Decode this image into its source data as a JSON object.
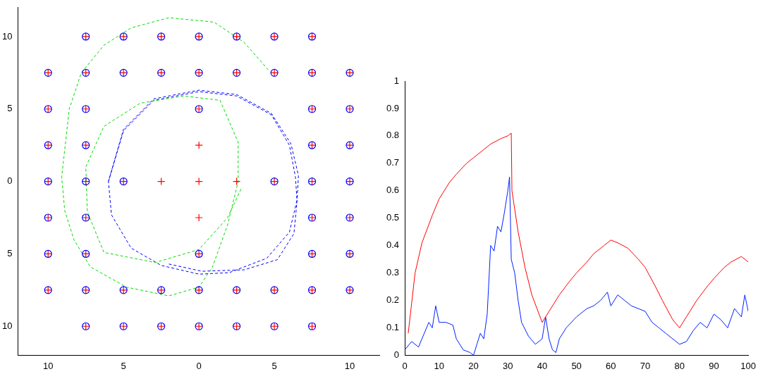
{
  "chart_data": [
    {
      "type": "scatter",
      "xlim": [
        -12,
        12
      ],
      "ylim": [
        -12,
        12
      ],
      "xticks": [
        {
          "value": -10,
          "label": "10"
        },
        {
          "value": -5,
          "label": "5"
        },
        0,
        5,
        10
      ],
      "yticks": [
        {
          "value": -10,
          "label": "10"
        },
        {
          "value": -5,
          "label": "5"
        },
        0,
        5,
        10
      ],
      "grid": false,
      "legend": false,
      "series": [
        {
          "color": "#0000ff",
          "marker": "circle",
          "x": [
            -7.5,
            -5,
            -2.5,
            0,
            2.5,
            5,
            7.5,
            -10,
            -7.5,
            -5,
            -2.5,
            0,
            2.5,
            5,
            7.5,
            10,
            -10,
            -7.5,
            0,
            7.5,
            10,
            -10,
            -7.5,
            7.5,
            10,
            -10,
            -7.5,
            -5,
            5,
            7.5,
            10,
            -10,
            -7.5,
            7.5,
            10,
            -10,
            -7.5,
            0,
            7.5,
            10,
            -10,
            -7.5,
            -5,
            -2.5,
            0,
            2.5,
            5,
            7.5,
            10,
            -7.5,
            -5,
            -2.5,
            0,
            2.5,
            5,
            7.5
          ],
          "values": [
            10,
            10,
            10,
            10,
            10,
            10,
            10,
            7.5,
            7.5,
            7.5,
            7.5,
            7.5,
            7.5,
            7.5,
            7.5,
            7.5,
            5,
            5,
            5,
            5,
            5,
            2.5,
            2.5,
            2.5,
            2.5,
            0,
            0,
            0,
            0,
            0,
            0,
            -2.5,
            -2.5,
            -2.5,
            -2.5,
            -5,
            -5,
            -5,
            -5,
            -5,
            -7.5,
            -7.5,
            -7.5,
            -7.5,
            -7.5,
            -7.5,
            -7.5,
            -7.5,
            -7.5,
            -10,
            -10,
            -10,
            -10,
            -10,
            -10,
            -10
          ]
        },
        {
          "color": "#ff0000",
          "marker": "cross",
          "x": [
            -7.5,
            -5,
            -2.5,
            0,
            2.5,
            5,
            7.5,
            -10,
            -7.5,
            -5,
            -2.5,
            0,
            2.5,
            5,
            7.5,
            10,
            -10,
            -7.5,
            0,
            7.5,
            10,
            -10,
            -7.5,
            0,
            7.5,
            10,
            -10,
            -7.5,
            -5,
            -2.5,
            0,
            2.5,
            5,
            7.5,
            10,
            -10,
            -7.5,
            0,
            7.5,
            10,
            -10,
            -7.5,
            0,
            7.5,
            10,
            -10,
            -7.5,
            -5,
            -2.5,
            0,
            2.5,
            5,
            7.5,
            10,
            -7.5,
            -5,
            -2.5,
            0,
            2.5,
            5,
            7.5
          ],
          "values": [
            10,
            10,
            10,
            10,
            10,
            10,
            10,
            7.5,
            7.5,
            7.5,
            7.5,
            7.5,
            7.5,
            7.5,
            7.5,
            7.5,
            5,
            5,
            5,
            5,
            5,
            2.5,
            2.5,
            2.5,
            2.5,
            2.5,
            0,
            0,
            0,
            0,
            0,
            0,
            0,
            0,
            0,
            -2.5,
            -2.5,
            -2.5,
            -2.5,
            -2.5,
            -5,
            -5,
            -5,
            -5,
            -5,
            -7.5,
            -7.5,
            -7.5,
            -7.5,
            -7.5,
            -7.5,
            -7.5,
            -7.5,
            -7.5,
            -10,
            -10,
            -10,
            -10,
            -10,
            -10,
            -10
          ]
        },
        {
          "type": "line",
          "color": "#00dd00",
          "line_style": "dashed",
          "marker": "none",
          "x": [
            4.6,
            3,
            1,
            -2,
            -4.5,
            -6.3,
            -7.8,
            -8.6,
            -9.1,
            -8.9,
            -8.3,
            -7.2,
            -4.8,
            -2,
            0,
            0.9,
            1.9,
            2.6,
            2.6,
            1.4,
            -1,
            -3.9,
            -6.3,
            -7.5,
            -7.4,
            -6.3,
            -2.9,
            0,
            1.9,
            2.8
          ],
          "values": [
            7.7,
            9.6,
            11,
            11.3,
            10.6,
            9.4,
            7.5,
            5,
            0.3,
            -2,
            -4,
            -5.9,
            -7.3,
            -7.9,
            -7.3,
            -5.9,
            -3,
            0,
            2.7,
            5.6,
            5.9,
            5.4,
            3.8,
            1,
            -2.1,
            -4.9,
            -5.6,
            -4.7,
            -2.5,
            -0.5
          ]
        },
        {
          "type": "line",
          "color": "#0000ff",
          "line_style": "dashed",
          "marker": "none",
          "x": [
            -6,
            -5,
            -3,
            0,
            2.5,
            4.8,
            6,
            6.4,
            6.5,
            6,
            4.5,
            2,
            0,
            -2.5,
            -4.5,
            -5.8,
            -6,
            -5,
            -3,
            0,
            2.5,
            4.8,
            6.1,
            6.6,
            6.5,
            6.3,
            5.2,
            3,
            0.2,
            -2
          ],
          "values": [
            0,
            3.5,
            5.6,
            6.2,
            5.9,
            4.6,
            2.5,
            0.3,
            -1.3,
            -3.5,
            -5.3,
            -6.3,
            -6.4,
            -5.8,
            -4.6,
            -2.3,
            0,
            3.6,
            5.7,
            6.3,
            6,
            4.7,
            2.6,
            0.4,
            -1.4,
            -3.6,
            -5.4,
            -6.1,
            -6.2,
            -5.7
          ]
        }
      ]
    },
    {
      "type": "line",
      "xlim": [
        0,
        100
      ],
      "ylim": [
        0,
        1
      ],
      "xticks": [
        0,
        10,
        20,
        30,
        40,
        50,
        60,
        70,
        80,
        90,
        100
      ],
      "yticks": [
        0,
        0.1,
        0.2,
        0.3,
        0.4,
        0.5,
        0.6,
        0.7,
        0.8,
        0.9,
        1
      ],
      "grid": false,
      "legend": false,
      "series": [
        {
          "color": "#ff0000",
          "x": [
            1,
            3,
            5,
            8,
            10,
            13,
            15,
            18,
            20,
            23,
            25,
            28,
            30,
            31,
            31.2,
            33,
            35,
            37,
            40,
            42,
            45,
            48,
            50,
            53,
            55,
            58,
            60,
            62,
            65,
            68,
            70,
            73,
            75,
            78,
            80,
            82,
            85,
            88,
            90,
            93,
            95,
            98,
            100
          ],
          "values": [
            0.08,
            0.3,
            0.41,
            0.51,
            0.57,
            0.63,
            0.66,
            0.7,
            0.72,
            0.75,
            0.77,
            0.79,
            0.8,
            0.81,
            0.6,
            0.45,
            0.32,
            0.22,
            0.12,
            0.16,
            0.22,
            0.27,
            0.3,
            0.34,
            0.37,
            0.4,
            0.42,
            0.41,
            0.39,
            0.35,
            0.32,
            0.25,
            0.2,
            0.13,
            0.1,
            0.14,
            0.2,
            0.25,
            0.28,
            0.32,
            0.34,
            0.36,
            0.34
          ]
        },
        {
          "color": "#0022ff",
          "x": [
            0,
            2,
            4,
            5,
            7,
            8,
            9,
            10,
            12,
            14,
            15,
            17,
            19,
            20,
            21,
            22,
            23,
            24,
            25,
            26,
            27,
            28,
            29,
            30,
            30.5,
            31,
            32,
            33,
            34,
            36,
            38,
            40,
            41,
            42,
            43,
            44,
            45,
            47,
            50,
            53,
            55,
            57,
            59,
            60,
            62,
            64,
            66,
            68,
            70,
            72,
            74,
            76,
            78,
            80,
            82,
            84,
            86,
            88,
            90,
            92,
            94,
            96,
            98,
            99,
            100
          ],
          "values": [
            0.02,
            0.05,
            0.03,
            0.06,
            0.12,
            0.1,
            0.18,
            0.12,
            0.12,
            0.11,
            0.06,
            0.02,
            0.01,
            0,
            0.04,
            0.08,
            0.06,
            0.15,
            0.4,
            0.38,
            0.47,
            0.45,
            0.52,
            0.6,
            0.65,
            0.35,
            0.3,
            0.2,
            0.12,
            0.07,
            0.04,
            0.06,
            0.14,
            0.06,
            0.02,
            0.01,
            0.06,
            0.1,
            0.14,
            0.17,
            0.18,
            0.2,
            0.23,
            0.18,
            0.22,
            0.2,
            0.18,
            0.17,
            0.16,
            0.12,
            0.1,
            0.08,
            0.06,
            0.04,
            0.05,
            0.09,
            0.12,
            0.1,
            0.15,
            0.13,
            0.1,
            0.17,
            0.14,
            0.22,
            0.16
          ]
        }
      ]
    }
  ]
}
